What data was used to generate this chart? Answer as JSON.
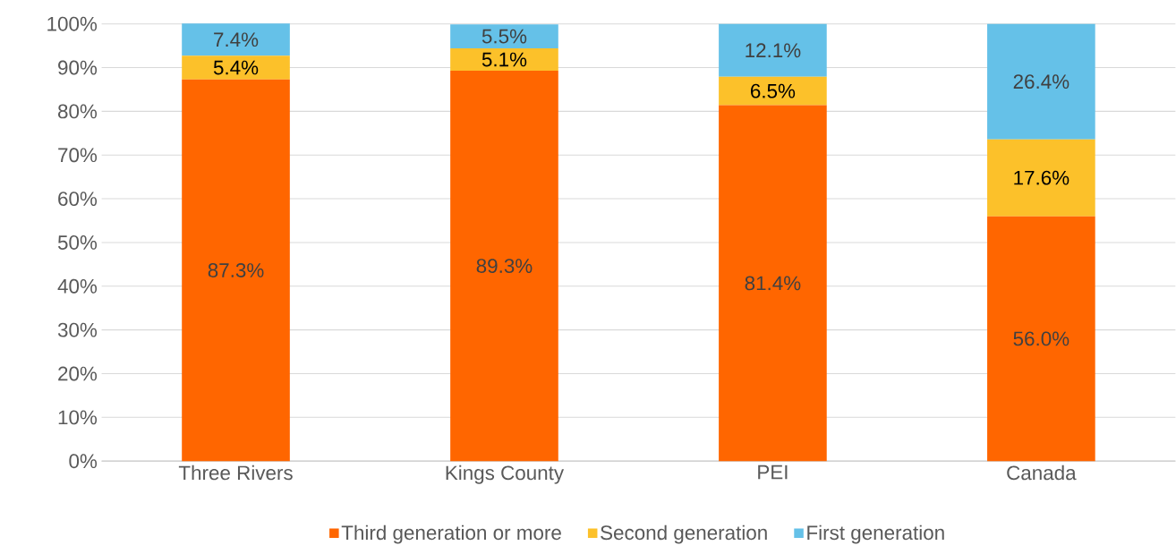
{
  "chart_data": {
    "type": "bar",
    "stacked": true,
    "categories": [
      "Three Rivers",
      "Kings County",
      "PEI",
      "Canada"
    ],
    "series": [
      {
        "name": "Third generation or more",
        "color": "#ff6600",
        "values": [
          87.3,
          89.3,
          81.4,
          56.0
        ],
        "value_labels": [
          "87.3%",
          "89.3%",
          "81.4%",
          "56.0%"
        ]
      },
      {
        "name": "Second generation",
        "color": "#fcc12a",
        "values": [
          5.4,
          5.1,
          6.5,
          17.6
        ],
        "value_labels": [
          "5.4%",
          "5.1%",
          "6.5%",
          "17.6%"
        ]
      },
      {
        "name": "First generation",
        "color": "#65c1e8",
        "values": [
          7.4,
          5.5,
          12.1,
          26.4
        ],
        "value_labels": [
          "7.4%",
          "5.5%",
          "12.1%",
          "26.4%"
        ]
      }
    ],
    "ylim": [
      0,
      100
    ],
    "yticks": [
      {
        "value": 0,
        "label": "0%"
      },
      {
        "value": 10,
        "label": "10%"
      },
      {
        "value": 20,
        "label": "20%"
      },
      {
        "value": 30,
        "label": "30%"
      },
      {
        "value": 40,
        "label": "40%"
      },
      {
        "value": 50,
        "label": "50%"
      },
      {
        "value": 60,
        "label": "60%"
      },
      {
        "value": 70,
        "label": "70%"
      },
      {
        "value": 80,
        "label": "80%"
      },
      {
        "value": 90,
        "label": "90%"
      },
      {
        "value": 100,
        "label": "100%"
      }
    ],
    "grid": "y",
    "legend": "bottom"
  }
}
